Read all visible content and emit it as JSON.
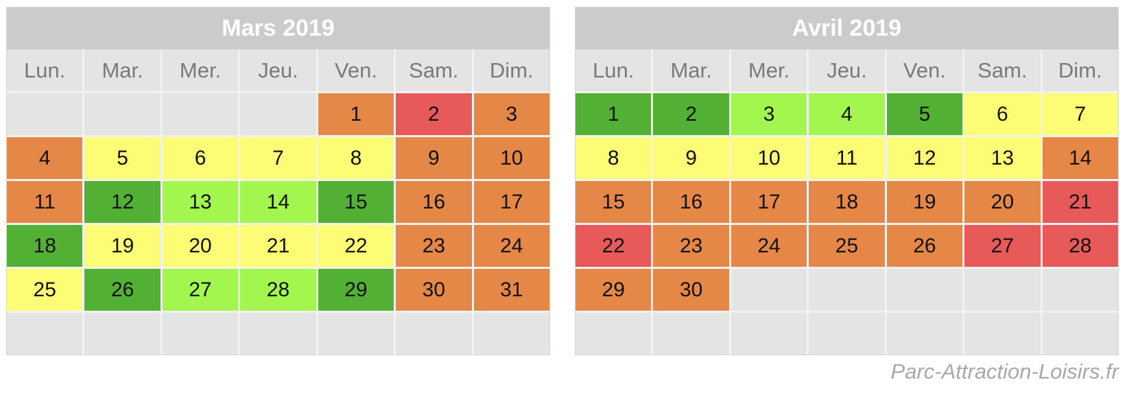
{
  "weekday_labels": [
    "Lun.",
    "Mar.",
    "Mer.",
    "Jeu.",
    "Ven.",
    "Sam.",
    "Dim."
  ],
  "legend_colors": {
    "empty": "#e4e4e4",
    "orange": "#e58746",
    "red": "#e85a5a",
    "yellow": "#fdfd75",
    "dgreen": "#52b135",
    "lgreen": "#a2f64e"
  },
  "months": [
    {
      "title": "Mars 2019",
      "weeks": [
        [
          {
            "d": "",
            "c": "empty"
          },
          {
            "d": "",
            "c": "empty"
          },
          {
            "d": "",
            "c": "empty"
          },
          {
            "d": "",
            "c": "empty"
          },
          {
            "d": "1",
            "c": "orange"
          },
          {
            "d": "2",
            "c": "red"
          },
          {
            "d": "3",
            "c": "orange"
          }
        ],
        [
          {
            "d": "4",
            "c": "orange"
          },
          {
            "d": "5",
            "c": "yellow"
          },
          {
            "d": "6",
            "c": "yellow"
          },
          {
            "d": "7",
            "c": "yellow"
          },
          {
            "d": "8",
            "c": "yellow"
          },
          {
            "d": "9",
            "c": "orange"
          },
          {
            "d": "10",
            "c": "orange"
          }
        ],
        [
          {
            "d": "11",
            "c": "orange"
          },
          {
            "d": "12",
            "c": "dgreen"
          },
          {
            "d": "13",
            "c": "lgreen"
          },
          {
            "d": "14",
            "c": "lgreen"
          },
          {
            "d": "15",
            "c": "dgreen"
          },
          {
            "d": "16",
            "c": "orange"
          },
          {
            "d": "17",
            "c": "orange"
          }
        ],
        [
          {
            "d": "18",
            "c": "dgreen"
          },
          {
            "d": "19",
            "c": "yellow"
          },
          {
            "d": "20",
            "c": "yellow"
          },
          {
            "d": "21",
            "c": "yellow"
          },
          {
            "d": "22",
            "c": "yellow"
          },
          {
            "d": "23",
            "c": "orange"
          },
          {
            "d": "24",
            "c": "orange"
          }
        ],
        [
          {
            "d": "25",
            "c": "yellow"
          },
          {
            "d": "26",
            "c": "dgreen"
          },
          {
            "d": "27",
            "c": "lgreen"
          },
          {
            "d": "28",
            "c": "lgreen"
          },
          {
            "d": "29",
            "c": "dgreen"
          },
          {
            "d": "30",
            "c": "orange"
          },
          {
            "d": "31",
            "c": "orange"
          }
        ],
        [
          {
            "d": "",
            "c": "empty"
          },
          {
            "d": "",
            "c": "empty"
          },
          {
            "d": "",
            "c": "empty"
          },
          {
            "d": "",
            "c": "empty"
          },
          {
            "d": "",
            "c": "empty"
          },
          {
            "d": "",
            "c": "empty"
          },
          {
            "d": "",
            "c": "empty"
          }
        ]
      ]
    },
    {
      "title": "Avril 2019",
      "weeks": [
        [
          {
            "d": "1",
            "c": "dgreen"
          },
          {
            "d": "2",
            "c": "dgreen"
          },
          {
            "d": "3",
            "c": "lgreen"
          },
          {
            "d": "4",
            "c": "lgreen"
          },
          {
            "d": "5",
            "c": "dgreen"
          },
          {
            "d": "6",
            "c": "yellow"
          },
          {
            "d": "7",
            "c": "yellow"
          }
        ],
        [
          {
            "d": "8",
            "c": "yellow"
          },
          {
            "d": "9",
            "c": "yellow"
          },
          {
            "d": "10",
            "c": "yellow"
          },
          {
            "d": "11",
            "c": "yellow"
          },
          {
            "d": "12",
            "c": "yellow"
          },
          {
            "d": "13",
            "c": "yellow"
          },
          {
            "d": "14",
            "c": "orange"
          }
        ],
        [
          {
            "d": "15",
            "c": "orange"
          },
          {
            "d": "16",
            "c": "orange"
          },
          {
            "d": "17",
            "c": "orange"
          },
          {
            "d": "18",
            "c": "orange"
          },
          {
            "d": "19",
            "c": "orange"
          },
          {
            "d": "20",
            "c": "orange"
          },
          {
            "d": "21",
            "c": "red"
          }
        ],
        [
          {
            "d": "22",
            "c": "red"
          },
          {
            "d": "23",
            "c": "orange"
          },
          {
            "d": "24",
            "c": "orange"
          },
          {
            "d": "25",
            "c": "orange"
          },
          {
            "d": "26",
            "c": "orange"
          },
          {
            "d": "27",
            "c": "red"
          },
          {
            "d": "28",
            "c": "red"
          }
        ],
        [
          {
            "d": "29",
            "c": "orange"
          },
          {
            "d": "30",
            "c": "orange"
          },
          {
            "d": "",
            "c": "empty"
          },
          {
            "d": "",
            "c": "empty"
          },
          {
            "d": "",
            "c": "empty"
          },
          {
            "d": "",
            "c": "empty"
          },
          {
            "d": "",
            "c": "empty"
          }
        ],
        [
          {
            "d": "",
            "c": "empty"
          },
          {
            "d": "",
            "c": "empty"
          },
          {
            "d": "",
            "c": "empty"
          },
          {
            "d": "",
            "c": "empty"
          },
          {
            "d": "",
            "c": "empty"
          },
          {
            "d": "",
            "c": "empty"
          },
          {
            "d": "",
            "c": "empty"
          }
        ]
      ]
    }
  ],
  "watermark": "Parc-Attraction-Loisirs.fr"
}
